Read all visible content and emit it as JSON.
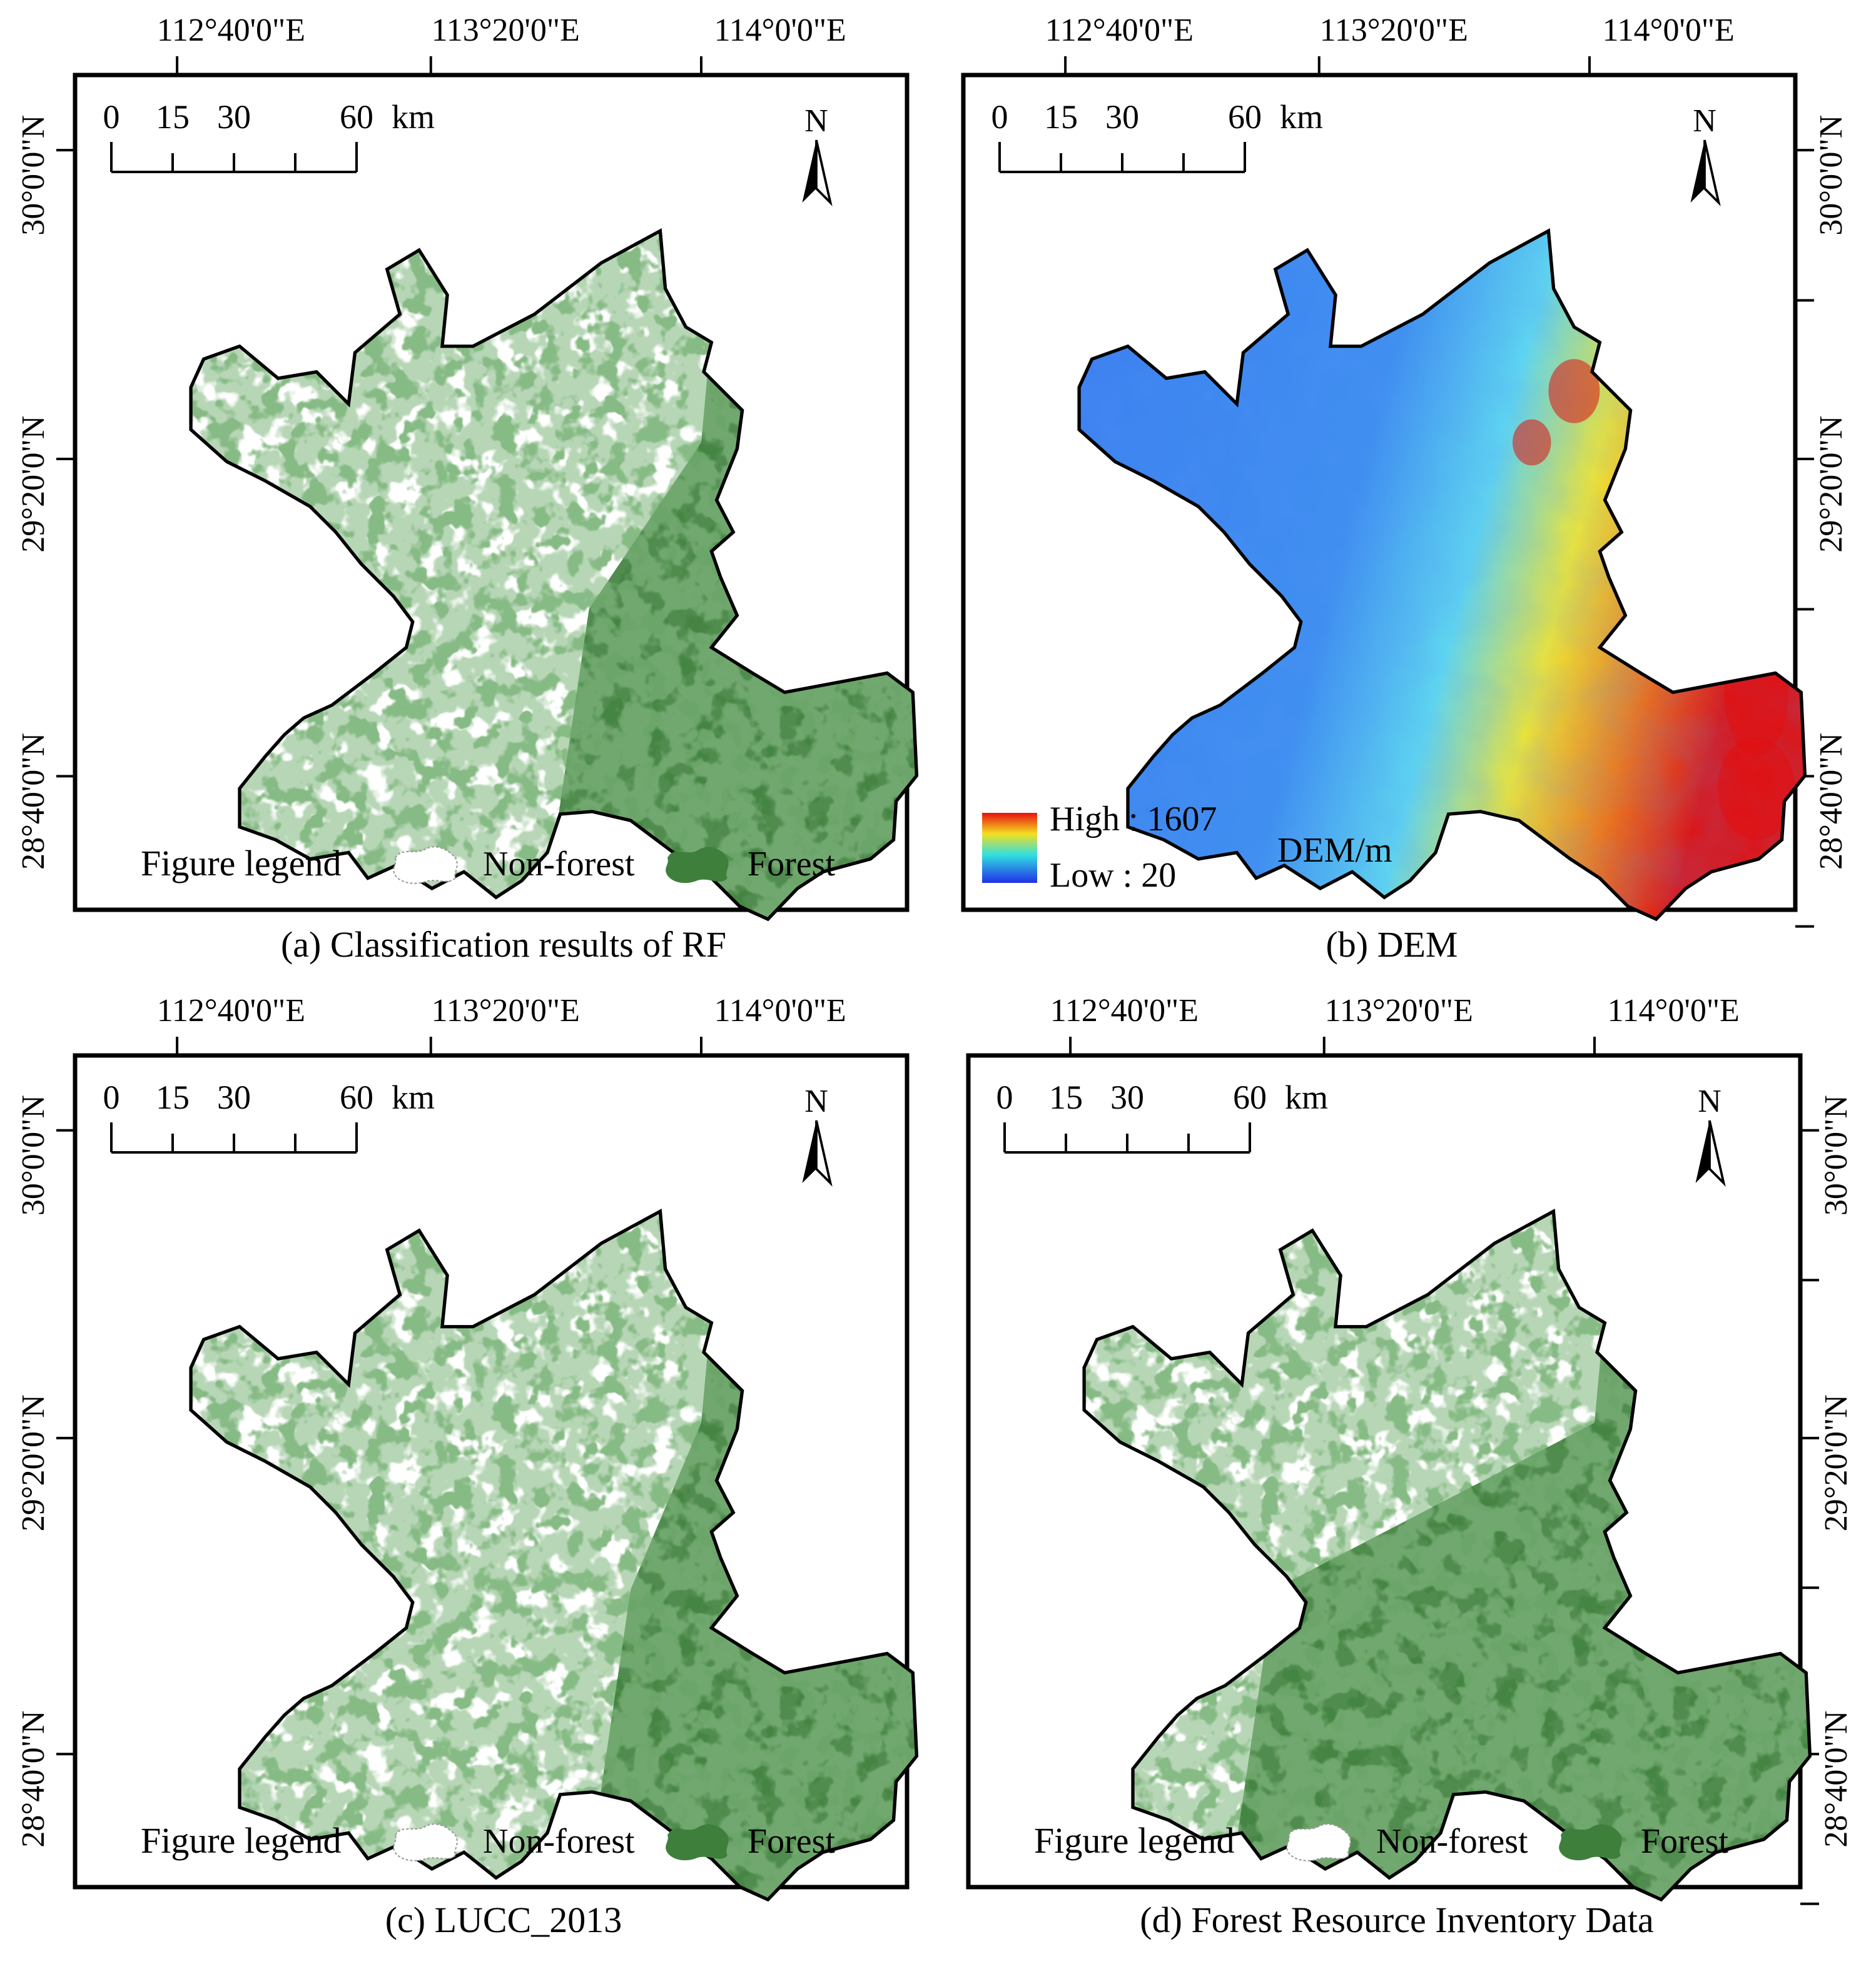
{
  "colors": {
    "forest": "#3e7f3c",
    "frame": "#000000",
    "dem_high": "#e01010",
    "dem_mid": "#f0e020",
    "dem_low": "#3a7ef0"
  },
  "longitude_labels": [
    "112°40'0\"E",
    "113°20'0\"E",
    "114°0'0\"E"
  ],
  "latitude_labels": [
    "30°0'0\"N",
    "29°20'0\"N",
    "28°40'0\"N"
  ],
  "scale_bar": {
    "labels": [
      "0",
      "15",
      "30",
      "60"
    ],
    "unit": "km"
  },
  "north_arrow": {
    "label": "N",
    "icon": "north-arrow-icon"
  },
  "legend": {
    "title": "Figure legend",
    "non_forest_label": "Non-forest",
    "forest_label": "Forest"
  },
  "dem_legend": {
    "high_label": "High : 1607",
    "low_label": "Low : 20",
    "unit_label": "DEM/m",
    "high_value": 1607,
    "low_value": 20
  },
  "panels": [
    {
      "id": "a",
      "caption": "(a) Classification results of RF",
      "type": "forest",
      "forest_extent": 0.55
    },
    {
      "id": "b",
      "caption": "(b) DEM",
      "type": "dem"
    },
    {
      "id": "c",
      "caption": "(c) LUCC_2013",
      "type": "forest",
      "forest_extent": 0.5
    },
    {
      "id": "d",
      "caption": "(d) Forest Resource Inventory Data",
      "type": "forest",
      "forest_extent": 0.8
    }
  ]
}
